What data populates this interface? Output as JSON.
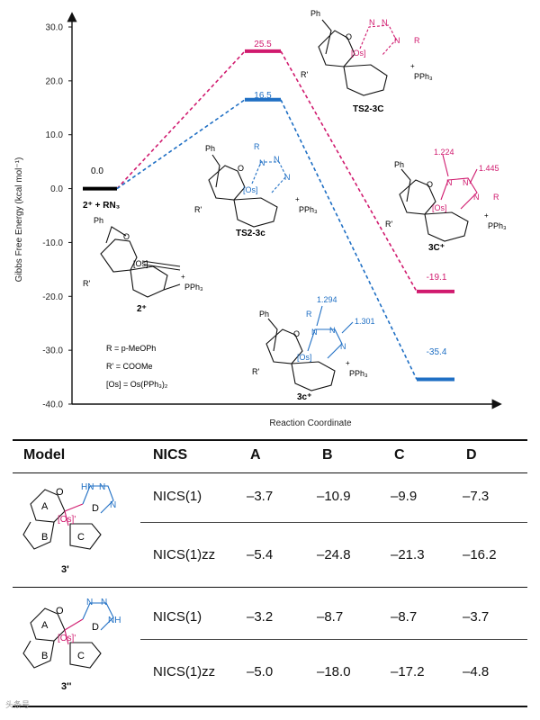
{
  "chart_data": {
    "type": "line",
    "title": "",
    "xlabel": "Reaction Coordinate",
    "ylabel": "Gibbs Free Energy (kcal mol⁻¹)",
    "ylim": [
      -40,
      30
    ],
    "yticks": [
      "30.0",
      "20.0",
      "10.0",
      "0.0",
      "-10.0",
      "-20.0",
      "-30.0",
      "-40.0"
    ],
    "ytick_values": [
      30,
      20,
      10,
      0,
      -10,
      -20,
      -30,
      -40
    ],
    "series": [
      {
        "name": "pink path",
        "color": "#d01a6e",
        "states": [
          {
            "label": "2⁺ + RN₃",
            "value": 0.0,
            "value_label": "0.0"
          },
          {
            "label": "TS2-3C",
            "value": 25.5,
            "value_label": "25.5"
          },
          {
            "label": "3C⁺",
            "value": -19.1,
            "value_label": "-19.1"
          }
        ]
      },
      {
        "name": "blue path",
        "color": "#1f6fc4",
        "states": [
          {
            "label": "2⁺ + RN₃",
            "value": 0.0,
            "value_label": "0.0"
          },
          {
            "label": "TS2-3c",
            "value": 16.5,
            "value_label": "16.5"
          },
          {
            "label": "3c⁺",
            "value": -35.4,
            "value_label": "-35.4"
          }
        ]
      }
    ],
    "annotations": {
      "start_label": "0.0",
      "reactant": "2⁺ + RN₃",
      "legend_r": "R = p-MeOPh",
      "legend_rprime": "R' = COOMe",
      "legend_os": "[Os] = Os(PPh₃)₂",
      "bond_3C_a": "1.224",
      "bond_3C_b": "1.445",
      "bond_3c_a": "1.294",
      "bond_3c_b": "1.301",
      "struct_2": "2⁺",
      "struct_ts_pink": "TS2-3C",
      "struct_ts_blue": "TS2-3c",
      "struct_3C": "3C⁺",
      "struct_3c": "3c⁺",
      "atom_os": "[Os]",
      "atom_pph3": "PPh₃",
      "atom_ph": "Ph",
      "atom_o": "O",
      "atom_rp": "R'",
      "atom_n": "N",
      "atom_r": "R",
      "atom_plus": "+"
    }
  },
  "table": {
    "headers": [
      "Model",
      "NICS",
      "A",
      "B",
      "C",
      "D"
    ],
    "models": [
      {
        "name": "3'",
        "rows": [
          {
            "nics": "NICS(1)",
            "values": [
              "–3.7",
              "–10.9",
              "–9.9",
              "–7.3"
            ]
          },
          {
            "nics": "NICS(1)zz",
            "values": [
              "–5.4",
              "–24.8",
              "–21.3",
              "–16.2"
            ]
          }
        ]
      },
      {
        "name": "3''",
        "rows": [
          {
            "nics": "NICS(1)",
            "values": [
              "–3.2",
              "–8.7",
              "–8.7",
              "–3.7"
            ]
          },
          {
            "nics": "NICS(1)zz",
            "values": [
              "–5.0",
              "–18.0",
              "–17.2",
              "–4.8"
            ]
          }
        ]
      }
    ],
    "ring_labels": [
      "A",
      "B",
      "C",
      "D"
    ],
    "struct_atoms": {
      "os": "[Os]'",
      "o": "O",
      "hn": "HN",
      "nh": "NH",
      "n": "N"
    }
  },
  "watermark": "头条号"
}
